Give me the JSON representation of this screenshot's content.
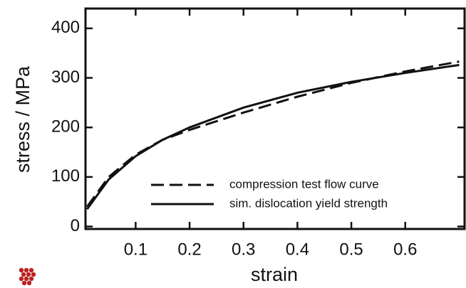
{
  "chart_data": {
    "type": "line",
    "x_label": "strain",
    "y_label": "stress / MPa",
    "x": [
      0.01,
      0.05,
      0.1,
      0.15,
      0.2,
      0.3,
      0.4,
      0.5,
      0.6,
      0.7
    ],
    "series": [
      {
        "name": "compression test flow curve",
        "color": "#111111",
        "dash": true,
        "values": [
          40,
          100,
          145,
          175,
          195,
          230,
          262,
          290,
          313,
          333
        ]
      },
      {
        "name": "sim. dislocation yield strength",
        "color": "#111111",
        "dash": false,
        "values": [
          35,
          95,
          142,
          175,
          200,
          240,
          270,
          292,
          310,
          326
        ]
      }
    ],
    "xlim": [
      0.007,
      0.71
    ],
    "ylim": [
      -5,
      440
    ],
    "xticks": [
      0.1,
      0.2,
      0.3,
      0.4,
      0.5,
      0.6
    ],
    "yticks": [
      0,
      100,
      200,
      300,
      400
    ],
    "grid": false
  }
}
